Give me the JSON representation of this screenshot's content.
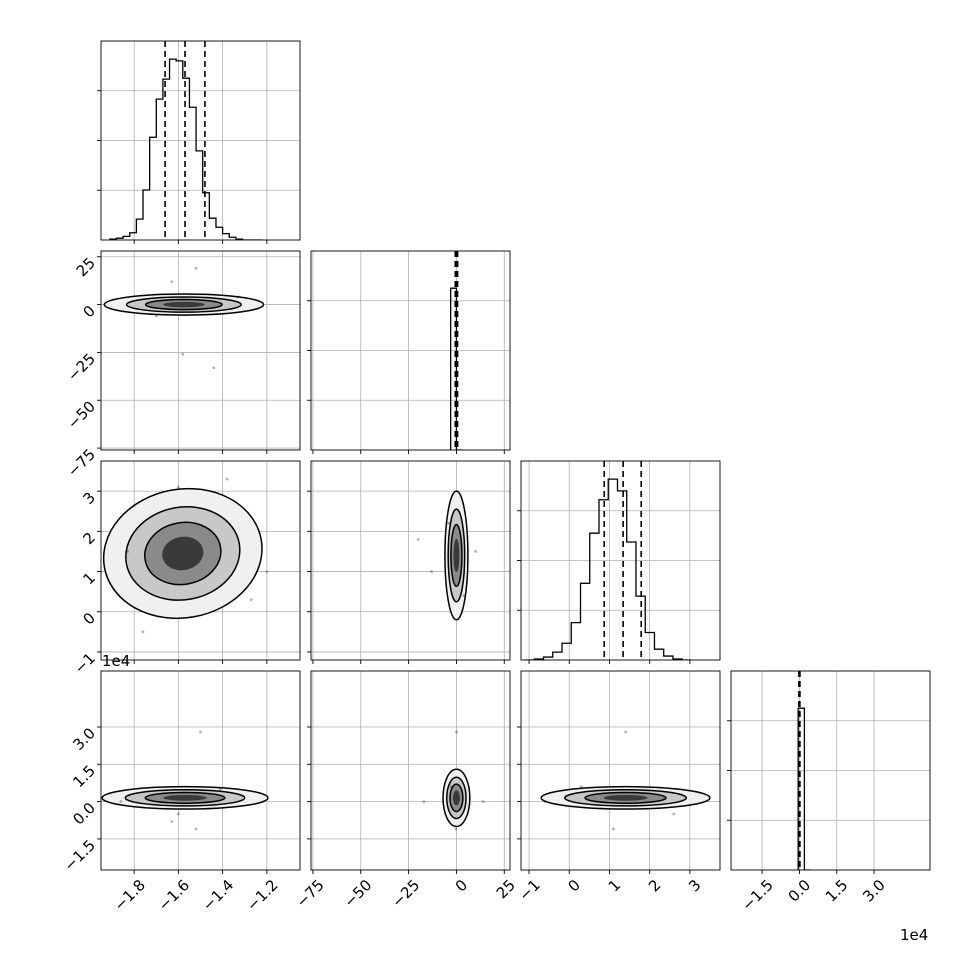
{
  "chart_data": {
    "type": "corner",
    "n_params": 4,
    "grid": true,
    "colors": {
      "line": "#000000",
      "grid": "#b0b0b0"
    },
    "params": [
      {
        "range": [
          -1.95,
          -1.05
        ],
        "ticks": [
          -1.8,
          -1.6,
          -1.4,
          -1.2
        ],
        "tick_labels": [
          "−1.8",
          "−1.6",
          "−1.4",
          "−1.2"
        ],
        "offset_label": ""
      },
      {
        "range": [
          -76,
          28
        ],
        "ticks": [
          -75,
          -50,
          -25,
          0,
          25
        ],
        "tick_labels": [
          "−75",
          "−50",
          "−25",
          "0",
          "25"
        ],
        "offset_label": ""
      },
      {
        "range": [
          -1.2,
          3.75
        ],
        "ticks": [
          -1,
          0,
          1,
          2,
          3
        ],
        "tick_labels": [
          "−1",
          "0",
          "1",
          "2",
          "3"
        ],
        "offset_label": "1e4"
      },
      {
        "range": [
          -2.75,
          5.25
        ],
        "ticks": [
          -1.5,
          0.0,
          1.5,
          3.0
        ],
        "tick_labels": [
          "−1.5",
          "0.0",
          "1.5",
          "3.0"
        ],
        "offset_label": "1e4"
      }
    ],
    "histograms": [
      {
        "edges": [
          -1.91,
          -1.88,
          -1.85,
          -1.82,
          -1.79,
          -1.76,
          -1.73,
          -1.7,
          -1.67,
          -1.64,
          -1.61,
          -1.58,
          -1.55,
          -1.52,
          -1.49,
          -1.46,
          -1.43,
          -1.4,
          -1.37,
          -1.34,
          -1.31,
          -1.28,
          -1.25,
          -1.22
        ],
        "counts": [
          1,
          2,
          4,
          8,
          23,
          55,
          113,
          155,
          177,
          199,
          197,
          178,
          146,
          98,
          52,
          24,
          14,
          7,
          3,
          1,
          0,
          0,
          0
        ],
        "quantiles": [
          -1.66,
          -1.57,
          -1.48
        ]
      },
      {
        "edges": [
          -3,
          0,
          3
        ],
        "counts": [
          1,
          0
        ],
        "quantiles": [
          -0.6,
          0.0,
          0.6
        ],
        "ylim": [
          0,
          1.23
        ]
      },
      {
        "edges": [
          -1.1,
          -0.87,
          -0.64,
          -0.41,
          -0.18,
          0.05,
          0.28,
          0.51,
          0.74,
          0.97,
          1.2,
          1.43,
          1.66,
          1.89,
          2.12,
          2.35,
          2.58,
          2.81,
          3.04
        ],
        "counts": [
          0,
          1,
          3,
          8,
          17,
          38,
          78,
          129,
          163,
          184,
          172,
          120,
          65,
          28,
          11,
          4,
          1,
          0
        ],
        "quantiles": [
          0.87,
          1.34,
          1.79
        ]
      },
      {
        "edges": [
          -0.05,
          0.2,
          0.45
        ],
        "counts": [
          1,
          0
        ],
        "quantiles": [
          -0.02,
          0.0,
          0.02
        ],
        "ylim": [
          0,
          1.23
        ]
      }
    ],
    "pairs": [
      {
        "row": 1,
        "col": 0,
        "center": [
          -1.575,
          0.0
        ],
        "sigma": [
          0.085,
          1.6
        ],
        "extent": [
          0.72,
          11
        ],
        "rho": 0,
        "scatter": [
          [
            -1.58,
            -26
          ],
          [
            -1.44,
            -33
          ],
          [
            -1.63,
            12
          ],
          [
            -1.52,
            19
          ],
          [
            -1.7,
            -6
          ],
          [
            -1.33,
            4
          ]
        ]
      },
      {
        "row": 2,
        "col": 0,
        "center": [
          -1.58,
          1.45
        ],
        "sigma": [
          0.08,
          0.45
        ],
        "extent": [
          0.72,
          3.2
        ],
        "rho": -0.3,
        "scatter": [
          [
            -1.83,
            1.5
          ],
          [
            -1.27,
            0.3
          ],
          [
            -1.38,
            3.3
          ],
          [
            -1.76,
            -0.5
          ],
          [
            -1.6,
            3.1
          ],
          [
            -1.2,
            1.0
          ]
        ]
      },
      {
        "row": 2,
        "col": 1,
        "center": [
          0.0,
          1.4
        ],
        "sigma": [
          0.7,
          0.55
        ],
        "extent": [
          12,
          3.2
        ],
        "rho": 0,
        "scatter": [
          [
            -20,
            1.8
          ],
          [
            -13,
            1.0
          ],
          [
            10,
            1.5
          ],
          [
            -4,
            2.2
          ],
          [
            4,
            0.4
          ]
        ]
      },
      {
        "row": 3,
        "col": 0,
        "center": [
          -1.57,
          0.15
        ],
        "sigma": [
          0.08,
          0.18
        ],
        "extent": [
          0.75,
          0.9
        ],
        "rho": 0,
        "scatter": [
          [
            -1.5,
            2.8
          ],
          [
            -1.52,
            -1.1
          ],
          [
            -1.63,
            -0.8
          ],
          [
            -1.6,
            -0.5
          ],
          [
            -1.41,
            0.5
          ],
          [
            -1.86,
            0.0
          ]
        ]
      },
      {
        "row": 3,
        "col": 1,
        "center": [
          0.0,
          0.15
        ],
        "sigma": [
          0.6,
          0.12
        ],
        "extent": [
          14,
          2.3
        ],
        "rho": 0,
        "scatter": [
          [
            0,
            2.8
          ],
          [
            -0.3,
            -1.1
          ],
          [
            -17,
            0.0
          ],
          [
            14,
            0.0
          ],
          [
            -3,
            0.6
          ]
        ]
      },
      {
        "row": 3,
        "col": 2,
        "center": [
          1.4,
          0.15
        ],
        "sigma": [
          0.45,
          0.18
        ],
        "extent": [
          4.2,
          0.9
        ],
        "rho": 0,
        "scatter": [
          [
            1.4,
            2.8
          ],
          [
            1.1,
            -1.1
          ],
          [
            0.3,
            0.6
          ],
          [
            2.6,
            -0.5
          ],
          [
            -0.6,
            0.0
          ]
        ]
      }
    ]
  }
}
